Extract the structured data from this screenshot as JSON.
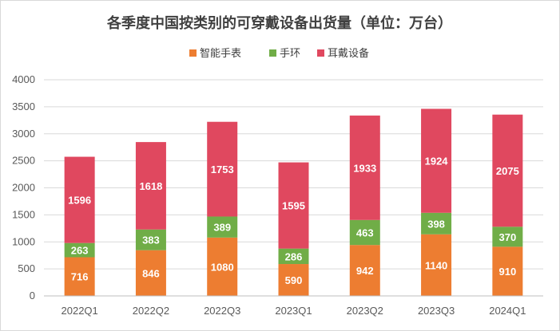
{
  "chart_data": {
    "type": "bar",
    "stacked": true,
    "title": "各季度中国按类别的可穿戴设备出货量（单位：万台）",
    "categories": [
      "2022Q1",
      "2022Q2",
      "2022Q3",
      "2023Q1",
      "2023Q2",
      "2023Q3",
      "2024Q1"
    ],
    "series": [
      {
        "name": "智能手表",
        "color": "#ED7D31",
        "values": [
          716,
          846,
          1080,
          590,
          942,
          1140,
          910
        ]
      },
      {
        "name": "手环",
        "color": "#70AD47",
        "values": [
          263,
          383,
          389,
          286,
          463,
          398,
          370
        ]
      },
      {
        "name": "耳戴设备",
        "color": "#E0485F",
        "values": [
          1596,
          1618,
          1753,
          1595,
          1933,
          1924,
          2075
        ]
      }
    ],
    "yticks": [
      0,
      500,
      1000,
      1500,
      2000,
      2500,
      3000,
      3500,
      4000
    ],
    "ylim": [
      0,
      4000
    ],
    "grid": true,
    "legend": "top"
  }
}
